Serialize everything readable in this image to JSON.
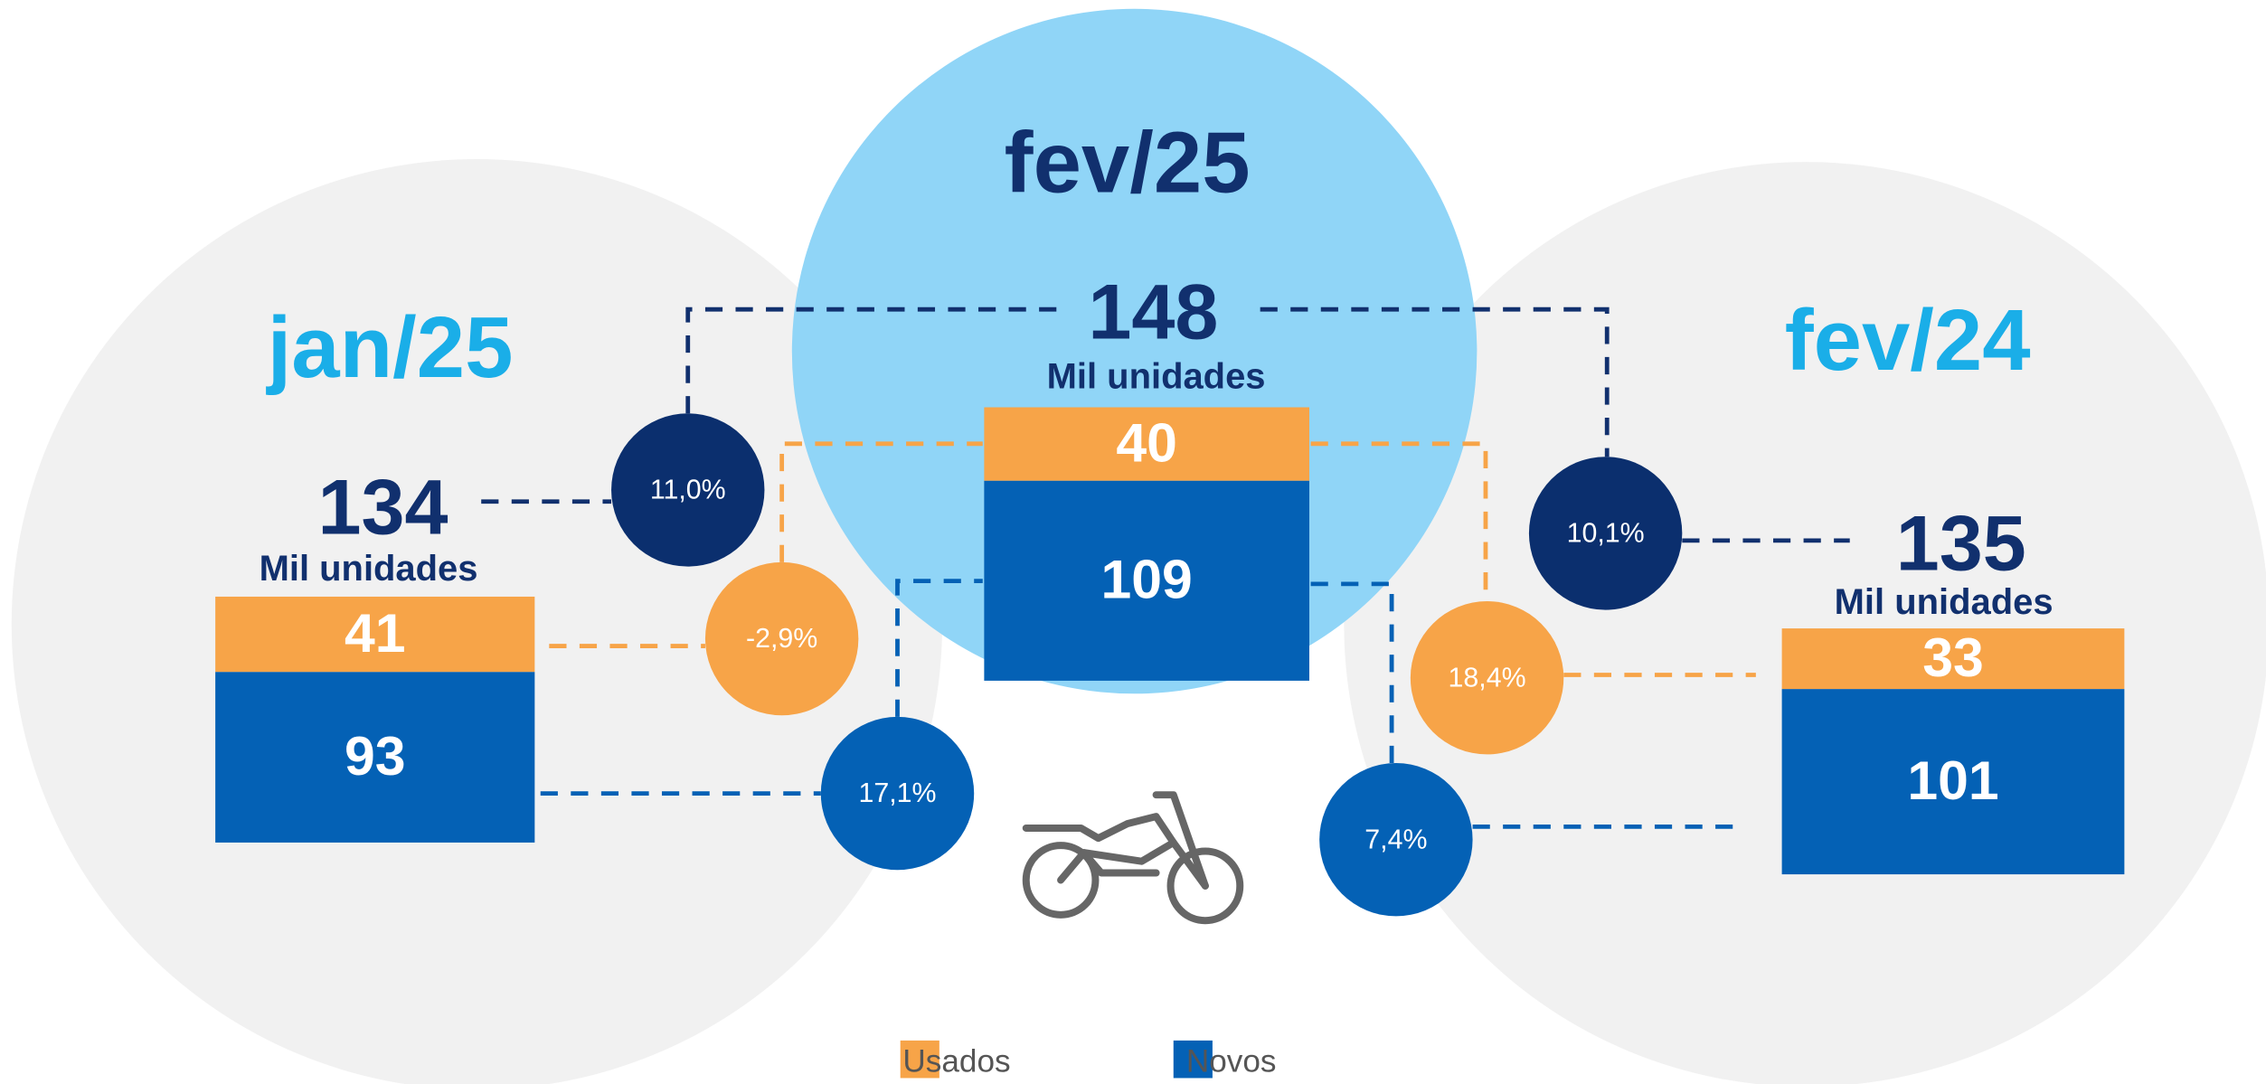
{
  "periods": [
    {
      "label": "jan/25",
      "total": 134,
      "unit": "Mil unidades",
      "usados": 41,
      "novos": 93
    },
    {
      "label": "fev/25",
      "total": 148,
      "unit": "Mil unidades",
      "usados": 40,
      "novos": 109
    },
    {
      "label": "fev/24",
      "total": 135,
      "unit": "Mil unidades",
      "usados": 33,
      "novos": 101
    }
  ],
  "changes": [
    {
      "total": "11,0%",
      "usados": "-2,9%",
      "novos": "17,1%"
    },
    {
      "total": "10,1%",
      "usados": "18,4%",
      "novos": "7,4%"
    }
  ],
  "legend": [
    {
      "label": "Usados",
      "color": "#f7a448"
    },
    {
      "label": "Novos",
      "color": "#0461b5"
    }
  ]
}
